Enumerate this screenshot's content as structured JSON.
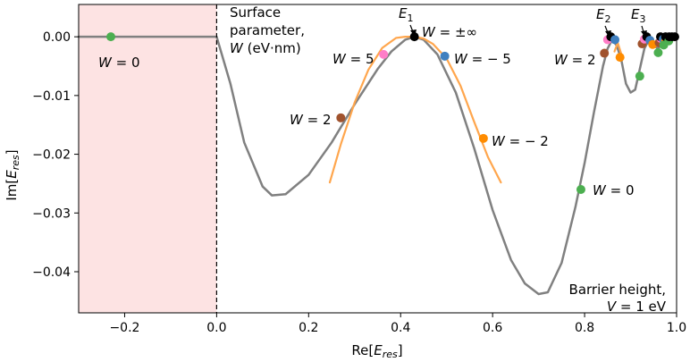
{
  "chart_data": {
    "type": "line",
    "xlabel": {
      "main": "Re[",
      "sym": "E",
      "sub": "res",
      "close": "]"
    },
    "ylabel": {
      "main": "Im[",
      "sym": "E",
      "sub": "res",
      "close": "]"
    },
    "xlim": [
      -0.3,
      1.0
    ],
    "ylim": [
      -0.047,
      0.0055
    ],
    "xticks": [
      {
        "value": -0.2,
        "label": "−0.2"
      },
      {
        "value": 0.0,
        "label": "0.0"
      },
      {
        "value": 0.2,
        "label": "0.2"
      },
      {
        "value": 0.4,
        "label": "0.4"
      },
      {
        "value": 0.6,
        "label": "0.6"
      },
      {
        "value": 0.8,
        "label": "0.8"
      },
      {
        "value": 1.0,
        "label": "1.0"
      }
    ],
    "yticks": [
      {
        "value": 0.0,
        "label": "0.00"
      },
      {
        "value": -0.01,
        "label": "−0.01"
      },
      {
        "value": -0.02,
        "label": "−0.02"
      },
      {
        "value": -0.03,
        "label": "−0.03"
      },
      {
        "value": -0.04,
        "label": "−0.04"
      }
    ],
    "shaded_region": {
      "x": [
        -0.3,
        0.0
      ],
      "color": "#fde3e3"
    },
    "vline": {
      "x": 0.0,
      "style": "dashed"
    },
    "series": [
      {
        "color": "#808080",
        "x": [
          -0.3,
          -0.1,
          0.0,
          0.03,
          0.06,
          0.1,
          0.12,
          0.15,
          0.2,
          0.25,
          0.3,
          0.35,
          0.38,
          0.41,
          0.43,
          0.45,
          0.48,
          0.52,
          0.56,
          0.6,
          0.64,
          0.67,
          0.7,
          0.72,
          0.75,
          0.78,
          0.8,
          0.82,
          0.84,
          0.85,
          0.86,
          0.87,
          0.88,
          0.89,
          0.9,
          0.91,
          0.92,
          0.93,
          0.94,
          0.95,
          0.96,
          0.97,
          0.98,
          0.99,
          1.0
        ],
        "y": [
          0.0,
          0.0,
          0.0,
          -0.008,
          -0.018,
          -0.0255,
          -0.027,
          -0.0268,
          -0.0235,
          -0.018,
          -0.0115,
          -0.0055,
          -0.0025,
          -0.0005,
          0.0,
          -0.0005,
          -0.003,
          -0.0095,
          -0.019,
          -0.0295,
          -0.038,
          -0.042,
          -0.0438,
          -0.0435,
          -0.0385,
          -0.029,
          -0.0215,
          -0.013,
          -0.005,
          -0.002,
          -0.0005,
          -0.0015,
          -0.004,
          -0.008,
          -0.0095,
          -0.009,
          -0.0055,
          -0.002,
          -0.0005,
          -0.0015,
          -0.002,
          -0.001,
          -0.0003,
          -0.0001,
          0.0
        ]
      },
      {
        "color": "#ffa64d",
        "x": [
          0.246,
          0.27,
          0.3,
          0.33,
          0.36,
          0.39,
          0.41,
          0.43,
          0.45,
          0.47,
          0.5,
          0.53,
          0.56,
          0.59,
          0.618
        ],
        "y": [
          -0.0248,
          -0.0183,
          -0.0112,
          -0.0056,
          -0.0019,
          -0.0002,
          0.0,
          0.0,
          -0.0003,
          -0.0012,
          -0.0037,
          -0.0083,
          -0.0145,
          -0.0205,
          -0.0248
        ]
      },
      {
        "color": "#ffa64d",
        "x": [
          0.865,
          0.872,
          0.88
        ],
        "y": [
          -0.0025,
          -0.001,
          -0.003
        ]
      },
      {
        "color": "#ffa64d",
        "x": [
          0.925,
          0.935,
          0.945
        ],
        "y": [
          -0.0015,
          -0.0002,
          -0.0016
        ]
      }
    ],
    "points": [
      {
        "x": -0.23,
        "y": 0.0,
        "color": "#4caf50"
      },
      {
        "x": 0.27,
        "y": -0.0138,
        "color": "#a0522d"
      },
      {
        "x": 0.363,
        "y": -0.003,
        "color": "#ff7ec8"
      },
      {
        "x": 0.43,
        "y": 0.0,
        "color": "#000000"
      },
      {
        "x": 0.496,
        "y": -0.0033,
        "color": "#3f7fbf"
      },
      {
        "x": 0.58,
        "y": -0.0173,
        "color": "#ff8c00"
      },
      {
        "x": 0.792,
        "y": -0.026,
        "color": "#4caf50"
      },
      {
        "x": 0.843,
        "y": -0.0028,
        "color": "#a0522d"
      },
      {
        "x": 0.85,
        "y": -0.0005,
        "color": "#ff7ec8"
      },
      {
        "x": 0.857,
        "y": 0.0,
        "color": "#000000"
      },
      {
        "x": 0.866,
        "y": -0.0005,
        "color": "#3f7fbf"
      },
      {
        "x": 0.877,
        "y": -0.0035,
        "color": "#ff8c00"
      },
      {
        "x": 0.92,
        "y": -0.0067,
        "color": "#4caf50"
      },
      {
        "x": 0.925,
        "y": -0.0012,
        "color": "#a0522d"
      },
      {
        "x": 0.93,
        "y": -0.0004,
        "color": "#ff7ec8"
      },
      {
        "x": 0.935,
        "y": 0.0,
        "color": "#000000"
      },
      {
        "x": 0.942,
        "y": -0.0006,
        "color": "#3f7fbf"
      },
      {
        "x": 0.948,
        "y": -0.0013,
        "color": "#ff8c00"
      },
      {
        "x": 0.96,
        "y": -0.0027,
        "color": "#4caf50"
      },
      {
        "x": 0.962,
        "y": -0.001,
        "color": "#a0522d"
      },
      {
        "x": 0.966,
        "y": -0.0003,
        "color": "#ff7ec8"
      },
      {
        "x": 0.965,
        "y": 0.0,
        "color": "#000000"
      },
      {
        "x": 0.971,
        "y": -0.0004,
        "color": "#3f7fbf"
      },
      {
        "x": 0.976,
        "y": -0.0008,
        "color": "#ff8c00"
      },
      {
        "x": 0.972,
        "y": -0.0014,
        "color": "#4caf50"
      },
      {
        "x": 0.976,
        "y": 0.0,
        "color": "#000000"
      },
      {
        "x": 0.983,
        "y": -0.0007,
        "color": "#4caf50"
      },
      {
        "x": 0.984,
        "y": 0.0,
        "color": "#000000"
      },
      {
        "x": 0.99,
        "y": 0.0,
        "color": "#000000"
      },
      {
        "x": 0.996,
        "y": 0.0,
        "color": "#000000"
      }
    ],
    "annotations": {
      "w0_left": {
        "sym": "W",
        "rest": " = 0"
      },
      "w2_left": {
        "sym": "W",
        "rest": " = 2"
      },
      "w5": {
        "sym": "W",
        "rest": " = 5"
      },
      "winf": {
        "sym": "W",
        "rest": " = ±∞"
      },
      "wm5": {
        "sym": "W",
        "rest": " = − 5"
      },
      "wm2": {
        "sym": "W",
        "rest": " = − 2"
      },
      "w0_right": {
        "sym": "W",
        "rest": " = 0"
      },
      "w2_right": {
        "sym": "W",
        "rest": " = 2"
      },
      "e1": {
        "sym": "E",
        "sub": "1"
      },
      "e2": {
        "sym": "E",
        "sub": "2"
      },
      "e3": {
        "sym": "E",
        "sub": "3"
      },
      "surface_line1": "Surface",
      "surface_line2": "parameter,",
      "surface_line3_sym": "W",
      "surface_line3_rest": " (eV·nm)",
      "barrier_line1": "Barrier height,",
      "barrier_line2_sym": "V",
      "barrier_line2_rest": " = 1 eV"
    }
  }
}
